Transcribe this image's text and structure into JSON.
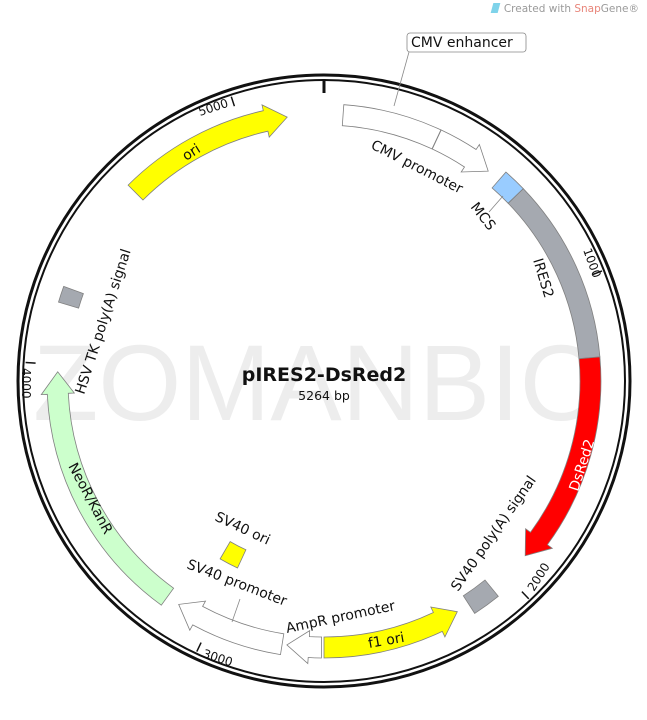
{
  "credit": {
    "prefix": "Created with ",
    "brand_a": "Snap",
    "brand_b": "Gene®"
  },
  "watermark": "ZOMANBIO",
  "plasmid": {
    "name": "pIRES2-DsRed2",
    "size_label": "5264 bp",
    "length": 5264
  },
  "ticks": [
    {
      "bp": 1000,
      "label": "1000"
    },
    {
      "bp": 2000,
      "label": "2000"
    },
    {
      "bp": 3000,
      "label": "3000"
    },
    {
      "bp": 4000,
      "label": "4000"
    },
    {
      "bp": 5000,
      "label": "5000"
    }
  ],
  "features": [
    {
      "name": "CMV enhancer",
      "start": 60,
      "end": 365,
      "direction": "none",
      "color": "#ffffff",
      "lane": "outer"
    },
    {
      "name": "CMV promoter",
      "start": 366,
      "end": 556,
      "direction": "forward",
      "color": "#ffffff",
      "lane": "outer"
    },
    {
      "name": "MCS",
      "start": 600,
      "end": 673,
      "direction": "none",
      "color": "#99ccff",
      "lane": "outer"
    },
    {
      "name": "IRES2",
      "start": 673,
      "end": 1243,
      "direction": "none",
      "color": "#a5a9b0",
      "lane": "outer"
    },
    {
      "name": "DsRed2",
      "start": 1243,
      "end": 1915,
      "direction": "forward",
      "color": "#ff0000",
      "lane": "outer"
    },
    {
      "name": "SV40 poly(A) signal",
      "start": 2062,
      "end": 2150,
      "direction": "none",
      "color": "#a5a9b0",
      "lane": "outer"
    },
    {
      "name": "f1 ori",
      "start": 2193,
      "end": 2632,
      "direction": "reverse",
      "color": "#ffff00",
      "lane": "outer"
    },
    {
      "name": "AmpR promoter",
      "start": 2640,
      "end": 2749,
      "direction": "forward",
      "color": "#ffffff",
      "lane": "outer"
    },
    {
      "name": "SV40 promoter",
      "start": 2764,
      "end": 3115,
      "direction": "forward",
      "color": "#ffffff",
      "lane": "outer"
    },
    {
      "name": "SV40 ori",
      "start": 2995,
      "end": 3075,
      "direction": "none",
      "color": "#ffff00",
      "lane": "inner"
    },
    {
      "name": "NeoR/KanR",
      "start": 3158,
      "end": 3977,
      "direction": "forward",
      "color": "#ccffcc",
      "lane": "outer"
    },
    {
      "name": "HSV TK poly(A) signal",
      "start": 4190,
      "end": 4240,
      "direction": "none",
      "color": "#a5a9b0",
      "lane": "outer"
    },
    {
      "name": "ori",
      "start": 4606,
      "end": 5148,
      "direction": "forward",
      "color": "#ffff00",
      "lane": "outer"
    }
  ]
}
